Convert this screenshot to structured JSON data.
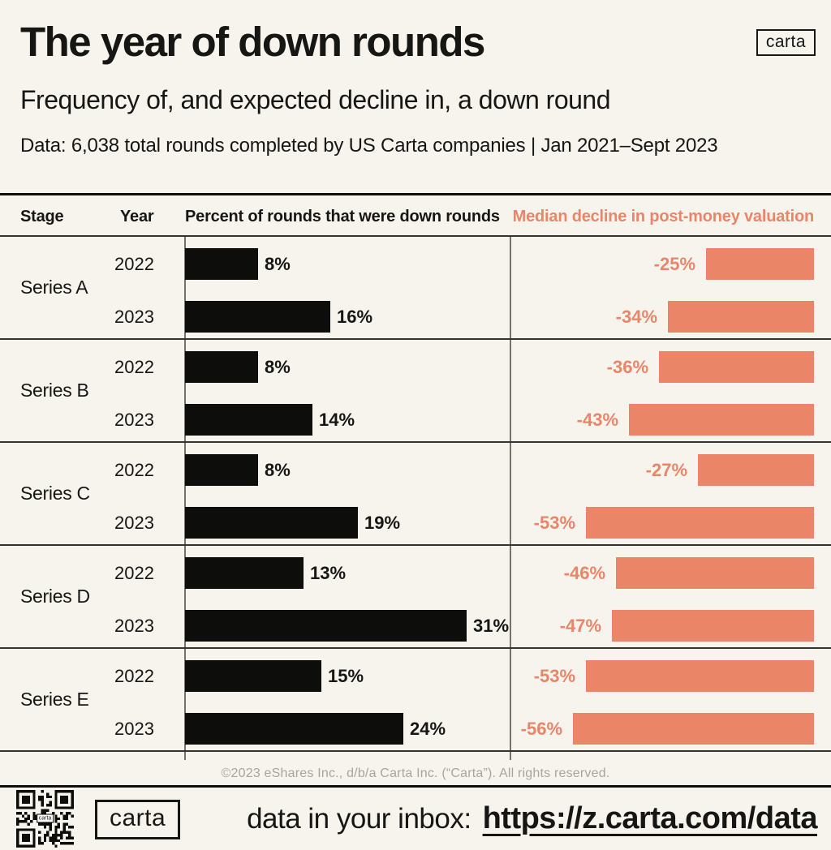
{
  "header": {
    "brand": "carta",
    "title": "The year of down rounds",
    "subtitle": "Frequency of, and expected decline in, a down round",
    "data_note": "Data: 6,038 total rounds completed by US Carta companies | Jan 2021–Sept 2023"
  },
  "colors": {
    "background": "#F7F4EE",
    "bar_black": "#0D0D0B",
    "bar_salmon": "#EA8568",
    "muted_gray": "#A7A5A0"
  },
  "chart_data": {
    "type": "bar",
    "orientation": "horizontal",
    "title": "The year of down rounds",
    "subtitle": "Frequency of, and expected decline in, a down round",
    "source_note": "Data: 6,038 total rounds completed by US Carta companies | Jan 2021–Sept 2023",
    "legend_position": "none",
    "grid": false,
    "columns": {
      "stage": "Stage",
      "year": "Year",
      "left": "Percent of rounds that were down rounds",
      "right": "Median decline in post-money valuation"
    },
    "series": [
      {
        "name": "Percent of rounds that were down rounds",
        "unit": "%",
        "color": "#0D0D0B",
        "anchor": "left"
      },
      {
        "name": "Median decline in post-money valuation",
        "unit": "%",
        "color": "#EA8568",
        "anchor": "right"
      }
    ],
    "groups": [
      {
        "stage": "Series A",
        "rows": [
          {
            "year": "2022",
            "down_round_pct": 8,
            "down_label": "8%",
            "decline_pct": -25,
            "decline_label": "-25%"
          },
          {
            "year": "2023",
            "down_round_pct": 16,
            "down_label": "16%",
            "decline_pct": -34,
            "decline_label": "-34%"
          }
        ]
      },
      {
        "stage": "Series B",
        "rows": [
          {
            "year": "2022",
            "down_round_pct": 8,
            "down_label": "8%",
            "decline_pct": -36,
            "decline_label": "-36%"
          },
          {
            "year": "2023",
            "down_round_pct": 14,
            "down_label": "14%",
            "decline_pct": -43,
            "decline_label": "-43%"
          }
        ]
      },
      {
        "stage": "Series C",
        "rows": [
          {
            "year": "2022",
            "down_round_pct": 8,
            "down_label": "8%",
            "decline_pct": -27,
            "decline_label": "-27%"
          },
          {
            "year": "2023",
            "down_round_pct": 19,
            "down_label": "19%",
            "decline_pct": -53,
            "decline_label": "-53%"
          }
        ]
      },
      {
        "stage": "Series D",
        "rows": [
          {
            "year": "2022",
            "down_round_pct": 13,
            "down_label": "13%",
            "decline_pct": -46,
            "decline_label": "-46%"
          },
          {
            "year": "2023",
            "down_round_pct": 31,
            "down_label": "31%",
            "decline_pct": -47,
            "decline_label": "-47%"
          }
        ]
      },
      {
        "stage": "Series E",
        "rows": [
          {
            "year": "2022",
            "down_round_pct": 15,
            "down_label": "15%",
            "decline_pct": -53,
            "decline_label": "-53%"
          },
          {
            "year": "2023",
            "down_round_pct": 24,
            "down_label": "24%",
            "decline_pct": -56,
            "decline_label": "-56%"
          }
        ]
      }
    ]
  },
  "footer": {
    "copyright": "©2023 eShares Inc., d/b/a Carta Inc. (“Carta”). All rights reserved.",
    "cta_brand": "carta",
    "cta_label": "data in your inbox:",
    "cta_url": "https://z.carta.com/data"
  }
}
